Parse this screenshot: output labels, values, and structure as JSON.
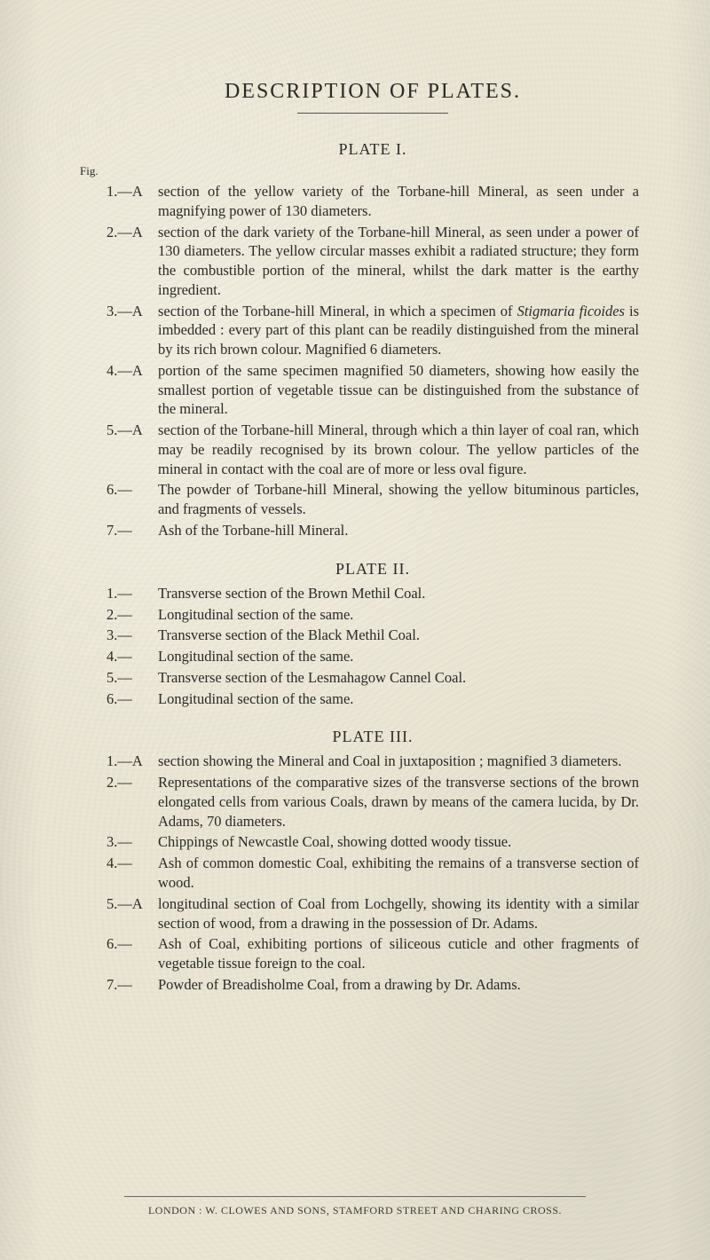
{
  "colors": {
    "paper": "#ebe6d4",
    "ink": "#2a2a28",
    "rule": "#555555",
    "footerInk": "#3a3a36"
  },
  "title": "DESCRIPTION OF PLATES.",
  "figLabel": "Fig.",
  "plates": [
    {
      "heading": "PLATE I.",
      "showFigLabel": true,
      "entries": [
        {
          "num": "1.—A",
          "text": "section of the yellow variety of the Torbane-hill Mineral, as seen under a magnifying power of 130 diameters."
        },
        {
          "num": "2.—A",
          "text": "section of the dark variety of the Torbane-hill Mineral, as seen under a power of 130 diameters. The yellow circular masses exhibit a radiated structure; they form the combustible portion of the mineral, whilst the dark matter is the earthy ingredient."
        },
        {
          "num": "3.—A",
          "text": "section of the Torbane-hill Mineral, in which a specimen of <i>Stigmaria ficoides</i> is imbedded : every part of this plant can be readily distinguished from the mineral by its rich brown colour. Magnified 6 diameters."
        },
        {
          "num": "4.—A",
          "text": "portion of the same specimen magnified 50 diameters, showing how easily the smallest portion of vegetable tissue can be distinguished from the substance of the mineral."
        },
        {
          "num": "5.—A",
          "text": "section of the Torbane-hill Mineral, through which a thin layer of coal ran, which may be readily recognised by its brown colour. The yellow particles of the mineral in contact with the coal are of more or less oval figure."
        },
        {
          "num": "6.—",
          "text": "The powder of Torbane-hill Mineral, showing the yellow bituminous particles, and fragments of vessels."
        },
        {
          "num": "7.—",
          "text": "Ash of the Torbane-hill Mineral."
        }
      ]
    },
    {
      "heading": "PLATE II.",
      "showFigLabel": false,
      "entries": [
        {
          "num": "1.—",
          "text": "Transverse section of the Brown Methil Coal."
        },
        {
          "num": "2.—",
          "text": "Longitudinal section of the same."
        },
        {
          "num": "3.—",
          "text": "Transverse section of the Black Methil Coal."
        },
        {
          "num": "4.—",
          "text": "Longitudinal section of the same."
        },
        {
          "num": "5.—",
          "text": "Transverse section of the Lesmahagow Cannel Coal."
        },
        {
          "num": "6.—",
          "text": "Longitudinal section of the same."
        }
      ]
    },
    {
      "heading": "PLATE III.",
      "showFigLabel": false,
      "entries": [
        {
          "num": "1.—A",
          "text": "section showing the Mineral and Coal in juxtaposition ; magnified 3 diameters."
        },
        {
          "num": "2.—",
          "text": "Representations of the comparative sizes of the transverse sections of the brown elongated cells from various Coals, drawn by means of the camera lucida, by Dr. Adams, 70 diameters."
        },
        {
          "num": "3.—",
          "text": "Chippings of Newcastle Coal, showing dotted woody tissue."
        },
        {
          "num": "4.—",
          "text": "Ash of common domestic Coal, exhibiting the remains of a transverse section of wood."
        },
        {
          "num": "5.—A",
          "text": "longitudinal section of Coal from Lochgelly, showing its identity with a similar section of wood, from a drawing in the possession of Dr. Adams."
        },
        {
          "num": "6.—",
          "text": "Ash of Coal, exhibiting portions of siliceous cuticle and other fragments of vegetable tissue foreign to the coal."
        },
        {
          "num": "7.—",
          "text": "Powder of Breadisholme Coal, from a drawing by Dr. Adams."
        }
      ]
    }
  ],
  "footer": "LONDON :  W. CLOWES AND SONS, STAMFORD STREET AND CHARING CROSS."
}
